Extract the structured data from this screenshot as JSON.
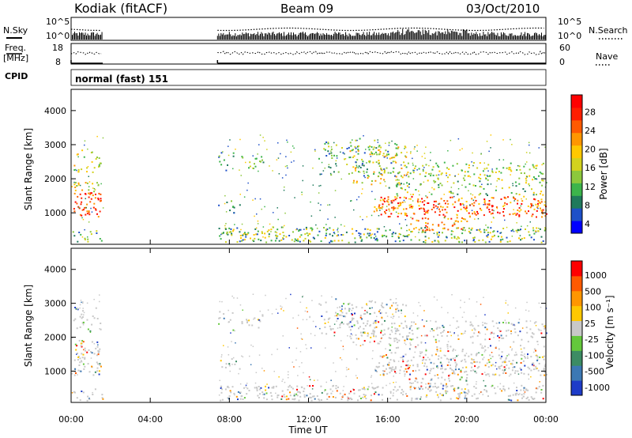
{
  "header": {
    "station": "Kodiak (fitACF)",
    "beam": "Beam 09",
    "date": "03/Oct/2010"
  },
  "status_panels": {
    "nsky_label": "N.Sky",
    "nsky_ticks": [
      "10^5",
      "10^0"
    ],
    "nsearch_label": "N.Search",
    "nsearch_ticks": [
      "10^5",
      "10^0"
    ],
    "freq_label_1": "Freq.",
    "freq_label_2": "[MHz]",
    "freq_ticks": [
      "18",
      "8"
    ],
    "nave_label": "Nave",
    "nave_ticks": [
      "60",
      "0"
    ],
    "cpid_label": "CPID",
    "cpid_value": "normal (fast) 151"
  },
  "chart_data": [
    {
      "type": "heatmap",
      "name": "power",
      "ylabel": "Slant Range [km]",
      "yticks": [
        1000,
        2000,
        3000,
        4000
      ],
      "ylim": [
        100,
        4600
      ],
      "xlim": [
        0,
        24
      ],
      "colorbar_label": "Power [dB]",
      "colorbar_ticks": [
        "28",
        "24",
        "20",
        "16",
        "12",
        "8",
        "4"
      ],
      "colorbar_colors": [
        "#0000ff",
        "#1e50c8",
        "#1f7a5c",
        "#3cb44b",
        "#8cc83c",
        "#d2d21e",
        "#ffc800",
        "#ff9600",
        "#ff5a00",
        "#ff1e00",
        "#ff0000"
      ]
    },
    {
      "type": "heatmap",
      "name": "velocity",
      "ylabel": "Slant Range [km]",
      "yticks": [
        1000,
        2000,
        3000,
        4000
      ],
      "ylim": [
        100,
        4600
      ],
      "xlim": [
        0,
        24
      ],
      "colorbar_label": "Velocity [m s⁻¹]",
      "colorbar_ticks": [
        "1000",
        "500",
        "100",
        "25",
        "-25",
        "-100",
        "-500",
        "-1000"
      ],
      "colorbar_colors": [
        "#1e3cc8",
        "#3c78b4",
        "#3c8c64",
        "#64c83c",
        "#c8c8c8",
        "#ffc800",
        "#ff9600",
        "#ff5a00",
        "#ff0000"
      ]
    }
  ],
  "x_axis": {
    "ticks": [
      "00:00",
      "04:00",
      "08:00",
      "12:00",
      "16:00",
      "20:00",
      "00:00"
    ],
    "label": "Time UT"
  }
}
